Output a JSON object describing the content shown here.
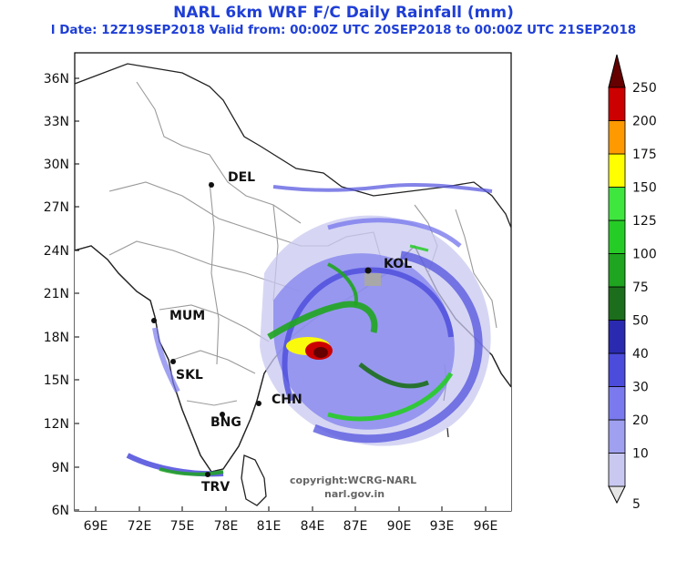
{
  "header": {
    "title": "NARL 6km WRF F/C Daily Rainfall (mm)",
    "subtitle": "l Date: 12Z19SEP2018 Valid from: 00:00Z UTC 20SEP2018 to 00:00Z UTC 21SEP2018"
  },
  "map": {
    "lat_ticks": [
      "36N",
      "33N",
      "30N",
      "27N",
      "24N",
      "21N",
      "18N",
      "15N",
      "12N",
      "9N",
      "6N"
    ],
    "lon_ticks": [
      "69E",
      "72E",
      "75E",
      "78E",
      "81E",
      "84E",
      "87E",
      "90E",
      "93E",
      "96E"
    ],
    "cities": [
      {
        "name": "DEL"
      },
      {
        "name": "KOL"
      },
      {
        "name": "MUM"
      },
      {
        "name": "SKL"
      },
      {
        "name": "CHN"
      },
      {
        "name": "BNG"
      },
      {
        "name": "TRV"
      }
    ],
    "credit_line1": "copyright:WCRG-NARL",
    "credit_line2": "narl.gov.in"
  },
  "colorbar": {
    "unit": "mm",
    "levels": [
      "5",
      "10",
      "20",
      "30",
      "40",
      "50",
      "75",
      "100",
      "125",
      "150",
      "175",
      "200",
      "250"
    ],
    "colors": [
      "#e6e6e6",
      "#c8c8f0",
      "#a0a0f0",
      "#7a7aee",
      "#4b4bdc",
      "#2a2ab0",
      "#1c6e1c",
      "#1fa51f",
      "#26cc26",
      "#3ee63e",
      "#ffff00",
      "#ff9900",
      "#cc0000",
      "#660000"
    ]
  }
}
